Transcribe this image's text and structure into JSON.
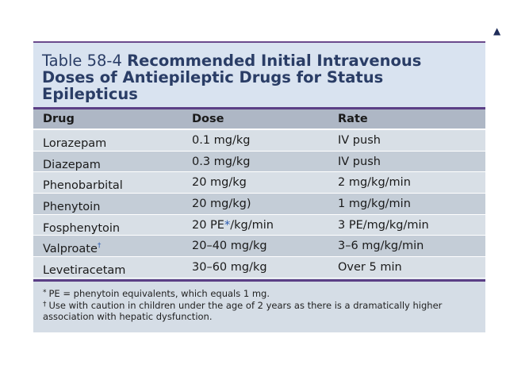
{
  "corner_mark": "▲",
  "table": {
    "label": "Table 58-4",
    "title": "Recommended Initial Intravenous Doses of Antiepileptic Drugs for Status Epilepticus",
    "columns": [
      "Drug",
      "Dose",
      "Rate"
    ],
    "rows": [
      {
        "drug": "Lorazepam",
        "drug_mark": "",
        "dose": "0.1 mg/kg",
        "dose_mark": "",
        "dose_suffix": "",
        "rate": "IV push"
      },
      {
        "drug": "Diazepam",
        "drug_mark": "",
        "dose": "0.3 mg/kg",
        "dose_mark": "",
        "dose_suffix": "",
        "rate": "IV push"
      },
      {
        "drug": "Phenobarbital",
        "drug_mark": "",
        "dose": "20 mg/kg",
        "dose_mark": "",
        "dose_suffix": "",
        "rate": "2 mg/kg/min"
      },
      {
        "drug": "Phenytoin",
        "drug_mark": "",
        "dose": "20 mg/kg)",
        "dose_mark": "",
        "dose_suffix": "",
        "rate": "1 mg/kg/min"
      },
      {
        "drug": "Fosphenytoin",
        "drug_mark": "",
        "dose": "20 PE",
        "dose_mark": "*",
        "dose_suffix": "/kg/min",
        "rate": "3 PE/mg/kg/min"
      },
      {
        "drug": "Valproate",
        "drug_mark": "†",
        "dose": "20–40 mg/kg",
        "dose_mark": "",
        "dose_suffix": "",
        "rate": "3–6 mg/kg/min"
      },
      {
        "drug": "Levetiracetam",
        "drug_mark": "",
        "dose": "30–60 mg/kg",
        "dose_mark": "",
        "dose_suffix": "",
        "rate": "Over 5 min"
      }
    ],
    "footnotes": [
      {
        "mark": "*",
        "text": "PE = phenytoin equivalents, which equals 1 mg."
      },
      {
        "mark": "†",
        "text": "Use with caution in children under the age of 2 years as there is a dramatically higher association with hepatic dysfunction."
      }
    ]
  }
}
